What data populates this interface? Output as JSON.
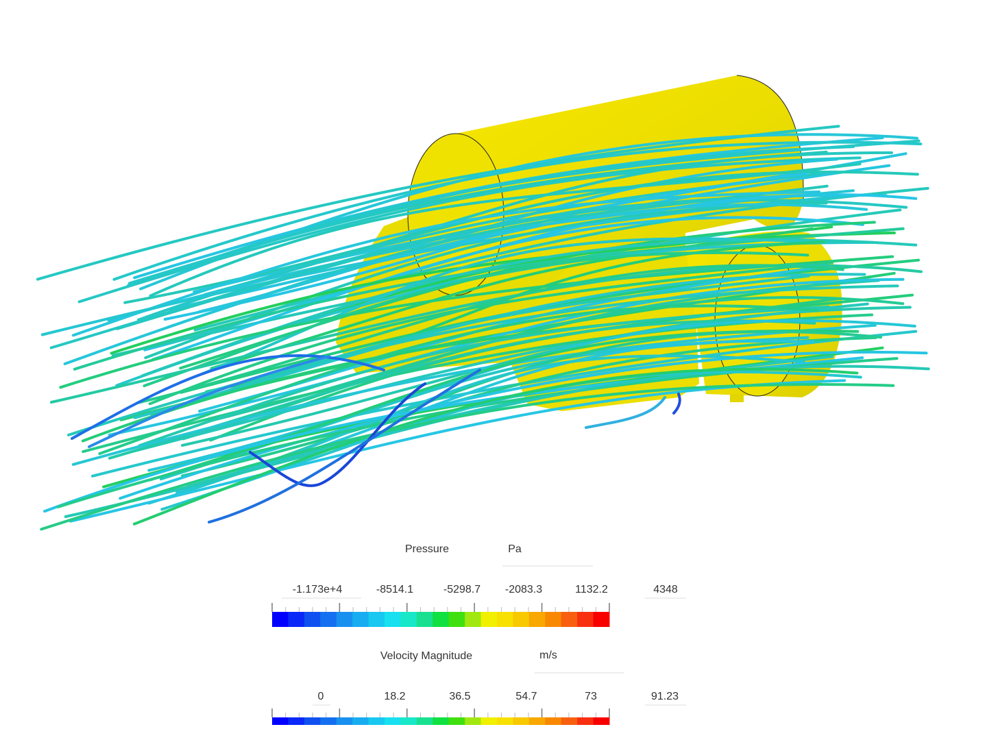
{
  "legends": [
    {
      "title": "Pressure",
      "unit": "Pa",
      "labels": [
        "-1.173e+4",
        "-8514.1",
        "-5298.7",
        "-2083.3",
        "1132.2",
        "4348"
      ]
    },
    {
      "title": "Velocity Magnitude",
      "unit": "m/s",
      "labels": [
        "0",
        "18.2",
        "36.5",
        "54.7",
        "73",
        "91.23"
      ]
    }
  ]
}
